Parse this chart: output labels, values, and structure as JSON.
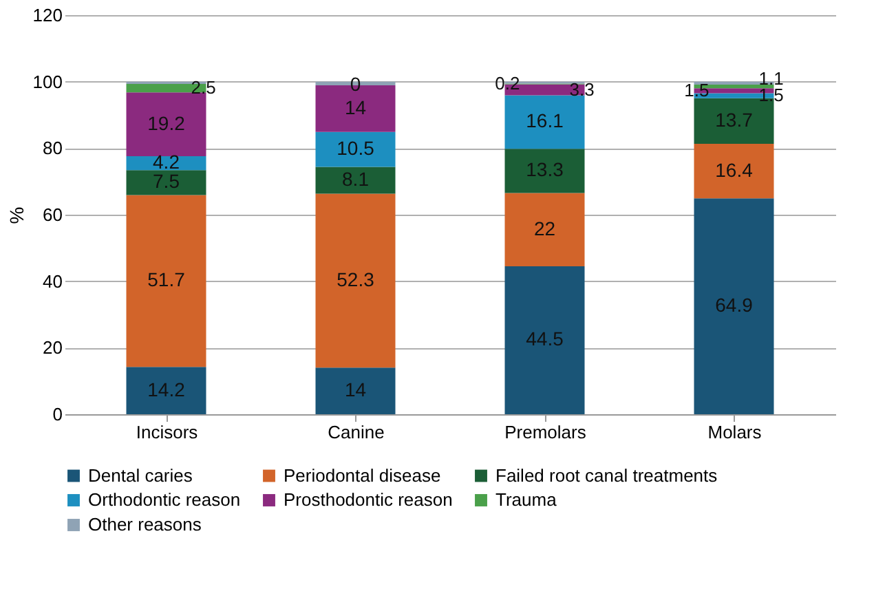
{
  "chart_data": {
    "type": "bar",
    "stacked": true,
    "ylabel": "%",
    "categories": [
      "Incisors",
      "Canine",
      "Premolars",
      "Molars"
    ],
    "series": [
      {
        "name": "Dental caries",
        "color": "#1a5577",
        "values": [
          14.2,
          14,
          44.5,
          64.9
        ],
        "value_labels": [
          "14.2",
          "14",
          "44.5",
          "64.9"
        ]
      },
      {
        "name": "Periodontal disease",
        "color": "#d2642a",
        "values": [
          51.7,
          52.3,
          22,
          16.4
        ],
        "value_labels": [
          "51.7",
          "52.3",
          "22",
          "16.4"
        ]
      },
      {
        "name": "Failed root canal treatments",
        "color": "#1b5e36",
        "values": [
          7.5,
          8.1,
          13.3,
          13.7
        ],
        "value_labels": [
          "7.5",
          "8.1",
          "13.3",
          "13.7"
        ]
      },
      {
        "name": "Orthodontic reason",
        "color": "#1d8fc0",
        "values": [
          4.2,
          10.5,
          16.1,
          1.5
        ],
        "value_labels": [
          "4.2",
          "10.5",
          "16.1",
          "1.5"
        ]
      },
      {
        "name": "Prosthodontic reason",
        "color": "#8b2a7f",
        "values": [
          19.2,
          14,
          3.3,
          1.5
        ],
        "value_labels": [
          "19.2",
          "14",
          "3.3",
          "1.5"
        ]
      },
      {
        "name": "Trauma",
        "color": "#4aa04a",
        "values": [
          2.5,
          0,
          0.2,
          1.1
        ],
        "value_labels": [
          "2.5",
          "0",
          "0.2",
          "1.1"
        ]
      },
      {
        "name": "Other reasons",
        "color": "#8fa3b5",
        "values": [
          0.7,
          1.1,
          0.6,
          0.9
        ],
        "value_labels": [
          null,
          null,
          null,
          null
        ]
      }
    ],
    "ylim": [
      0,
      120
    ],
    "yticks": [
      0,
      20,
      40,
      60,
      80,
      100,
      120
    ],
    "grid": "y",
    "legend": "bottom"
  }
}
